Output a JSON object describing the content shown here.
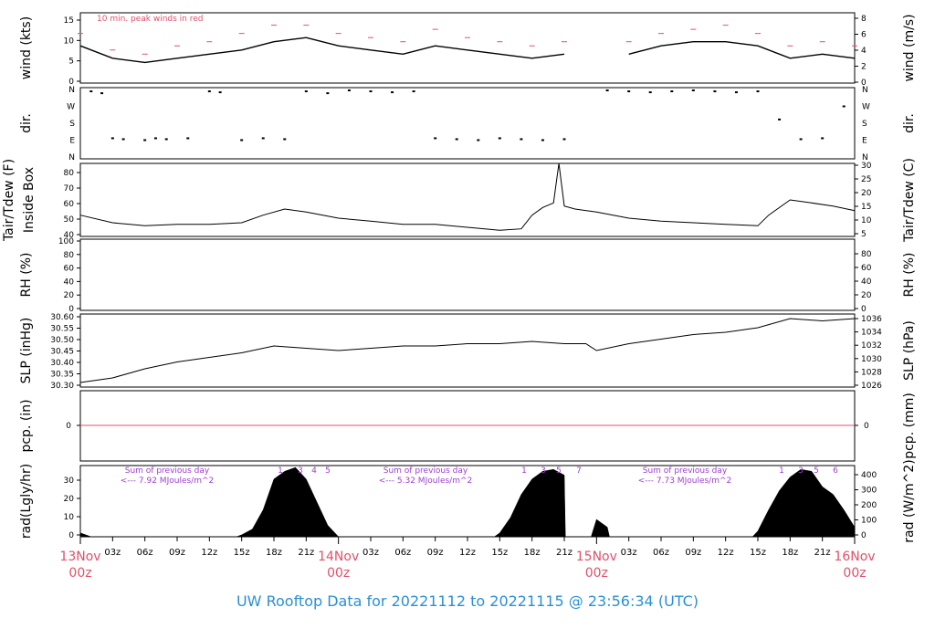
{
  "footer_title": "UW Rooftop Data for 20221112  to  20221115 @ 23:56:34  (UTC)",
  "colors": {
    "day_label": "#e2506a",
    "footer": "#2a8fd6",
    "annotation": "#9b3fd1",
    "peak": "#e2506a",
    "pcp_line": "#e2506a"
  },
  "time_axis": {
    "hour_ticks": [
      "03z",
      "06z",
      "09z",
      "12z",
      "15z",
      "18z",
      "21z"
    ],
    "day_labels": [
      {
        "date": "13Nov",
        "hour": "00z"
      },
      {
        "date": "14Nov",
        "hour": "00z"
      },
      {
        "date": "15Nov",
        "hour": "00z"
      },
      {
        "date": "16Nov",
        "hour": "00z"
      }
    ]
  },
  "chart_data": [
    {
      "id": "wind",
      "type": "line",
      "ylabel_left": "wind (kts)",
      "ylabel_right": "wind (m/s)",
      "ylim": [
        0,
        17
      ],
      "yticks_left": [
        "0",
        "5",
        "10",
        "15"
      ],
      "yticks_right": [
        "0",
        "2",
        "4",
        "6",
        "8"
      ],
      "annotation": "10 min. peak winds in red",
      "series": [
        {
          "x_hours": [
            0,
            3,
            6,
            9,
            12,
            15,
            18,
            21,
            24,
            27,
            30,
            33,
            36,
            39,
            42,
            45,
            48,
            51,
            54,
            57,
            60,
            63,
            66,
            69,
            72
          ],
          "values": [
            9,
            6,
            5,
            6,
            7,
            8,
            10,
            11,
            9,
            8,
            7,
            9,
            8,
            7,
            6,
            7,
            null,
            7,
            9,
            10,
            10,
            9,
            6,
            7,
            6
          ]
        }
      ],
      "peaks": [
        12,
        8,
        7,
        9,
        10,
        12,
        14,
        14,
        12,
        11,
        10,
        13,
        11,
        10,
        9,
        10,
        null,
        10,
        12,
        13,
        14,
        12,
        9,
        10,
        9
      ]
    },
    {
      "id": "dir",
      "type": "scatter",
      "ylabel_left": "dir.",
      "ylabel_right": "dir.",
      "yticks": [
        "N",
        "W",
        "S",
        "E",
        "N"
      ],
      "points": [
        {
          "x": 1,
          "y": 350
        },
        {
          "x": 2,
          "y": 340
        },
        {
          "x": 3,
          "y": 100
        },
        {
          "x": 4,
          "y": 95
        },
        {
          "x": 6,
          "y": 90
        },
        {
          "x": 7,
          "y": 100
        },
        {
          "x": 8,
          "y": 95
        },
        {
          "x": 10,
          "y": 100
        },
        {
          "x": 12,
          "y": 350
        },
        {
          "x": 13,
          "y": 345
        },
        {
          "x": 15,
          "y": 90
        },
        {
          "x": 17,
          "y": 100
        },
        {
          "x": 19,
          "y": 95
        },
        {
          "x": 21,
          "y": 350
        },
        {
          "x": 23,
          "y": 340
        },
        {
          "x": 25,
          "y": 355
        },
        {
          "x": 27,
          "y": 350
        },
        {
          "x": 29,
          "y": 345
        },
        {
          "x": 31,
          "y": 350
        },
        {
          "x": 33,
          "y": 100
        },
        {
          "x": 35,
          "y": 95
        },
        {
          "x": 37,
          "y": 90
        },
        {
          "x": 39,
          "y": 100
        },
        {
          "x": 41,
          "y": 95
        },
        {
          "x": 43,
          "y": 90
        },
        {
          "x": 45,
          "y": 95
        },
        {
          "x": 49,
          "y": 355
        },
        {
          "x": 51,
          "y": 350
        },
        {
          "x": 53,
          "y": 345
        },
        {
          "x": 55,
          "y": 350
        },
        {
          "x": 57,
          "y": 355
        },
        {
          "x": 59,
          "y": 350
        },
        {
          "x": 61,
          "y": 345
        },
        {
          "x": 63,
          "y": 350
        },
        {
          "x": 65,
          "y": 200
        },
        {
          "x": 67,
          "y": 95
        },
        {
          "x": 69,
          "y": 100
        },
        {
          "x": 71,
          "y": 270
        }
      ]
    },
    {
      "id": "temp",
      "type": "line",
      "ylabel_left": "Tair/Tdew (F)",
      "ylabel_left2": "Inside Box",
      "ylabel_right": "Tair/Tdew (C)",
      "ylim": [
        38,
        86
      ],
      "yticks_left": [
        "40",
        "50",
        "60",
        "70",
        "80"
      ],
      "yticks_right": [
        "5",
        "10",
        "15",
        "20",
        "25",
        "30"
      ],
      "series": [
        {
          "x_hours": [
            0,
            3,
            6,
            9,
            12,
            15,
            17,
            19,
            21,
            24,
            27,
            30,
            33,
            36,
            39,
            41,
            42,
            43,
            44,
            44.5,
            45,
            46,
            48,
            51,
            54,
            57,
            60,
            63,
            64,
            66,
            68,
            70,
            72
          ],
          "values": [
            52,
            47,
            45,
            46,
            46,
            47,
            52,
            56,
            54,
            50,
            48,
            46,
            46,
            44,
            42,
            43,
            52,
            57,
            60,
            86,
            58,
            56,
            54,
            50,
            48,
            47,
            46,
            45,
            52,
            62,
            60,
            58,
            55
          ]
        }
      ]
    },
    {
      "id": "rh",
      "type": "line",
      "ylabel_left": "RH (%)",
      "ylabel_right": "RH (%)",
      "ylim": [
        0,
        100
      ],
      "yticks_left": [
        "0",
        "20",
        "40",
        "60",
        "80",
        "100"
      ],
      "yticks_right": [
        "0",
        "20",
        "40",
        "60",
        "80"
      ],
      "series": []
    },
    {
      "id": "slp",
      "type": "line",
      "ylabel_left": "SLP (inHg)",
      "ylabel_right": "SLP (hPa)",
      "ylim": [
        30.29,
        30.61
      ],
      "yticks_left": [
        "30.30",
        "30.35",
        "30.40",
        "30.45",
        "30.50",
        "30.55",
        "30.60"
      ],
      "yticks_right": [
        "1026",
        "1028",
        "1030",
        "1032",
        "1034",
        "1036"
      ],
      "series": [
        {
          "x_hours": [
            0,
            3,
            6,
            9,
            12,
            15,
            18,
            21,
            24,
            27,
            30,
            33,
            36,
            39,
            42,
            45,
            47,
            48,
            51,
            54,
            57,
            60,
            63,
            66,
            69,
            72
          ],
          "values": [
            30.31,
            30.33,
            30.37,
            30.4,
            30.42,
            30.44,
            30.47,
            30.46,
            30.45,
            30.46,
            30.47,
            30.47,
            30.48,
            30.48,
            30.49,
            30.48,
            30.48,
            30.45,
            30.48,
            30.5,
            30.52,
            30.53,
            30.55,
            30.59,
            30.58,
            30.59
          ]
        }
      ]
    },
    {
      "id": "pcp",
      "type": "line",
      "ylabel_left": "pcp. (in)",
      "ylabel_right": "pcp. (mm)",
      "yticks_left": [
        "0"
      ],
      "yticks_right": [
        "0"
      ],
      "series": [
        {
          "x_hours": [
            0,
            72
          ],
          "values": [
            0,
            0
          ]
        }
      ]
    },
    {
      "id": "rad",
      "type": "area",
      "ylabel_left": "rad(Lgly/hr)",
      "ylabel_right": "rad (W/m^2)",
      "ylim": [
        0,
        37
      ],
      "yticks_left": [
        "0",
        "10",
        "20",
        "30"
      ],
      "yticks_right": [
        "0",
        "100",
        "200",
        "300",
        "400"
      ],
      "day_notes": [
        {
          "line1": "Sum of previous day",
          "line2": "<--- 7.92 MJoules/m^2"
        },
        {
          "line1": "Sum of previous day",
          "line2": "<--- 5.32 MJoules/m^2"
        },
        {
          "line1": "Sum of previous day",
          "line2": "<--- 7.73 MJoules/m^2"
        }
      ],
      "marker_labels": [
        [
          "1",
          "3",
          "4",
          "5"
        ],
        [
          "1",
          "3",
          "5",
          "7"
        ],
        [
          "1",
          "3",
          "5",
          "6"
        ]
      ],
      "series": [
        {
          "x_hours": [
            0,
            1,
            2,
            14.5,
            15,
            16,
            17,
            18,
            19,
            20,
            21,
            22,
            23,
            24,
            38.5,
            39,
            40,
            41,
            42,
            43,
            44,
            45,
            45.1,
            47.5,
            48,
            49,
            49.2,
            62.5,
            63,
            64,
            65,
            66,
            67,
            68,
            69,
            70,
            71,
            72
          ],
          "values": [
            2,
            0,
            0,
            0,
            1,
            4,
            14,
            30,
            34,
            36,
            30,
            18,
            6,
            0,
            0,
            2,
            10,
            22,
            30,
            34,
            35,
            32,
            0,
            0,
            9,
            5,
            0,
            0,
            3,
            14,
            24,
            31,
            35,
            34,
            26,
            22,
            14,
            5
          ]
        }
      ]
    }
  ]
}
